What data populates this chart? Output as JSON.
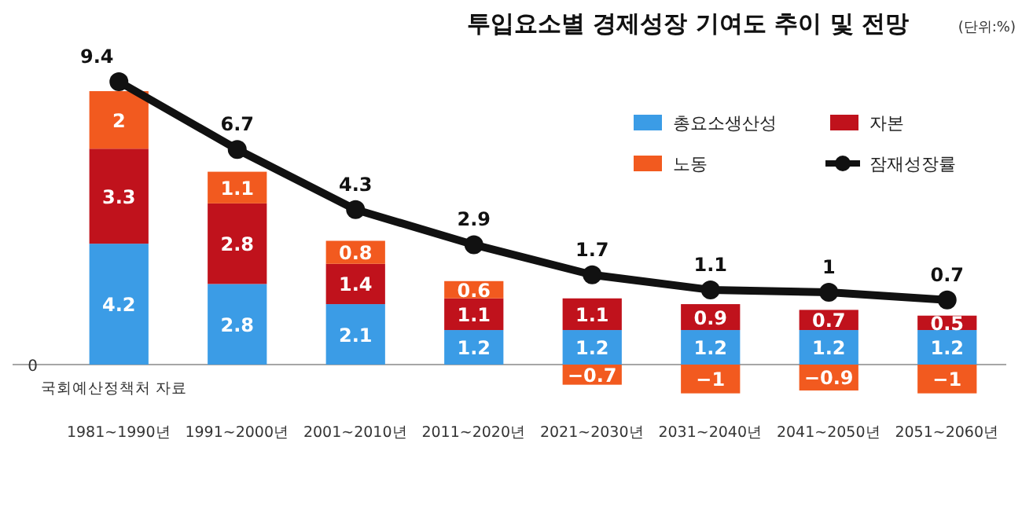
{
  "chart_data": {
    "type": "bar",
    "title": "투입요소별 경제성장 기여도 추이 및 전망",
    "subtitle": "(단위:%)",
    "categories": [
      "1981~1990년",
      "1991~2000년",
      "2001~2010년",
      "2011~2020년",
      "2021~2030년",
      "2031~2040년",
      "2041~2050년",
      "2051~2060년"
    ],
    "series": [
      {
        "name": "총요소생산성",
        "color": "#3b9ce6",
        "values": [
          4.2,
          2.8,
          2.1,
          1.2,
          1.2,
          1.2,
          1.2,
          1.2
        ]
      },
      {
        "name": "자본",
        "color": "#c0121c",
        "values": [
          3.3,
          2.8,
          1.4,
          1.1,
          1.1,
          0.9,
          0.7,
          0.5
        ]
      },
      {
        "name": "노동",
        "color": "#f25a1f",
        "values": [
          2,
          1.1,
          0.8,
          0.6,
          -0.7,
          -1.0,
          -0.9,
          -1.0
        ]
      },
      {
        "name": "잠재성장률",
        "type": "line",
        "axis": "y2",
        "color": "#111111",
        "marker": "circle",
        "values": [
          9.4,
          6.7,
          4.3,
          2.9,
          1.7,
          1.1,
          1.0,
          0.7
        ]
      }
    ],
    "stacked": true,
    "data_labels": true,
    "legend": "top right",
    "annotations": [
      "0",
      "국회예산정책처 자료"
    ]
  }
}
